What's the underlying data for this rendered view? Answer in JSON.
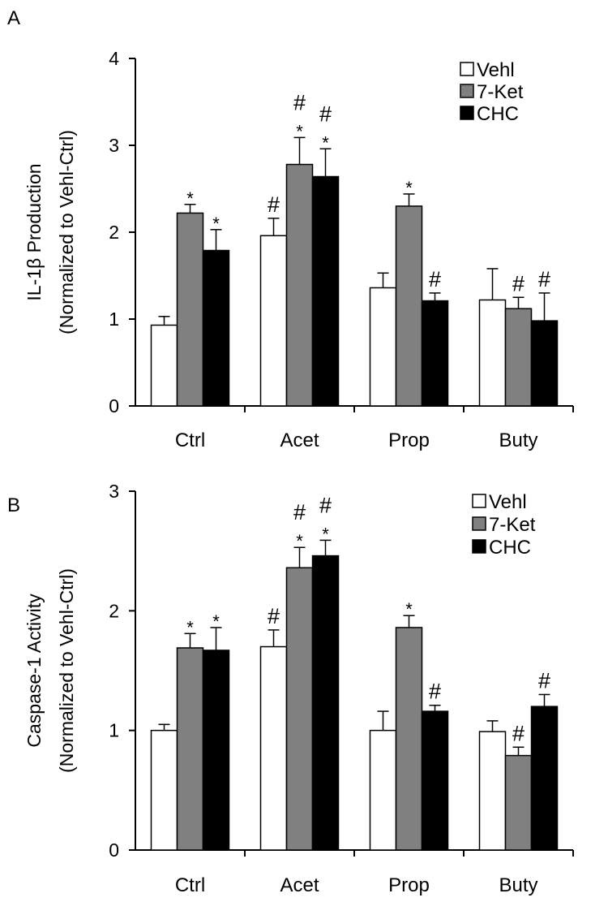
{
  "chart_data": [
    {
      "type": "bar",
      "panel_label": "A",
      "ylabel_line1": "IL-1β Production",
      "ylabel_line2": "(Normalized to Vehl-Ctrl)",
      "ylim": [
        0,
        4
      ],
      "yticks": [
        "0",
        "1",
        "2",
        "3",
        "4"
      ],
      "categories": [
        "Ctrl",
        "Acet",
        "Prop",
        "Buty"
      ],
      "legend_position": "top-right",
      "series": [
        {
          "name": "Vehl",
          "color": "#ffffff",
          "values": [
            0.93,
            1.96,
            1.36,
            1.22
          ],
          "errors": [
            0.1,
            0.2,
            0.17,
            0.36
          ],
          "annotations": [
            "",
            "#",
            "",
            ""
          ]
        },
        {
          "name": "7-Ket",
          "color": "#808080",
          "values": [
            2.22,
            2.78,
            2.3,
            1.12
          ],
          "errors": [
            0.1,
            0.31,
            0.14,
            0.13
          ],
          "annotations": [
            "*",
            "#\n*",
            "*",
            "#"
          ]
        },
        {
          "name": "CHC",
          "color": "#000000",
          "values": [
            1.79,
            2.64,
            1.21,
            0.98
          ],
          "errors": [
            0.24,
            0.32,
            0.09,
            0.32
          ],
          "annotations": [
            "*",
            "#\n*",
            "#",
            "#"
          ]
        }
      ]
    },
    {
      "type": "bar",
      "panel_label": "B",
      "ylabel_line1": "Caspase-1 Activity",
      "ylabel_line2": "(Normalized to Vehl-Ctrl)",
      "ylim": [
        0,
        3
      ],
      "yticks": [
        "0",
        "1",
        "2",
        "3"
      ],
      "categories": [
        "Ctrl",
        "Acet",
        "Prop",
        "Buty"
      ],
      "legend_position": "top-right",
      "series": [
        {
          "name": "Vehl",
          "color": "#ffffff",
          "values": [
            1.0,
            1.7,
            1.0,
            0.99
          ],
          "errors": [
            0.05,
            0.14,
            0.16,
            0.09
          ],
          "annotations": [
            "",
            "#",
            "",
            ""
          ]
        },
        {
          "name": "7-Ket",
          "color": "#808080",
          "values": [
            1.69,
            2.36,
            1.86,
            0.79
          ],
          "errors": [
            0.12,
            0.17,
            0.1,
            0.07
          ],
          "annotations": [
            "*",
            "#\n*",
            "*",
            "#"
          ]
        },
        {
          "name": "CHC",
          "color": "#000000",
          "values": [
            1.67,
            2.46,
            1.16,
            1.2
          ],
          "errors": [
            0.19,
            0.13,
            0.05,
            0.1
          ],
          "annotations": [
            "*",
            "#\n*",
            "#",
            "#"
          ]
        }
      ]
    }
  ]
}
